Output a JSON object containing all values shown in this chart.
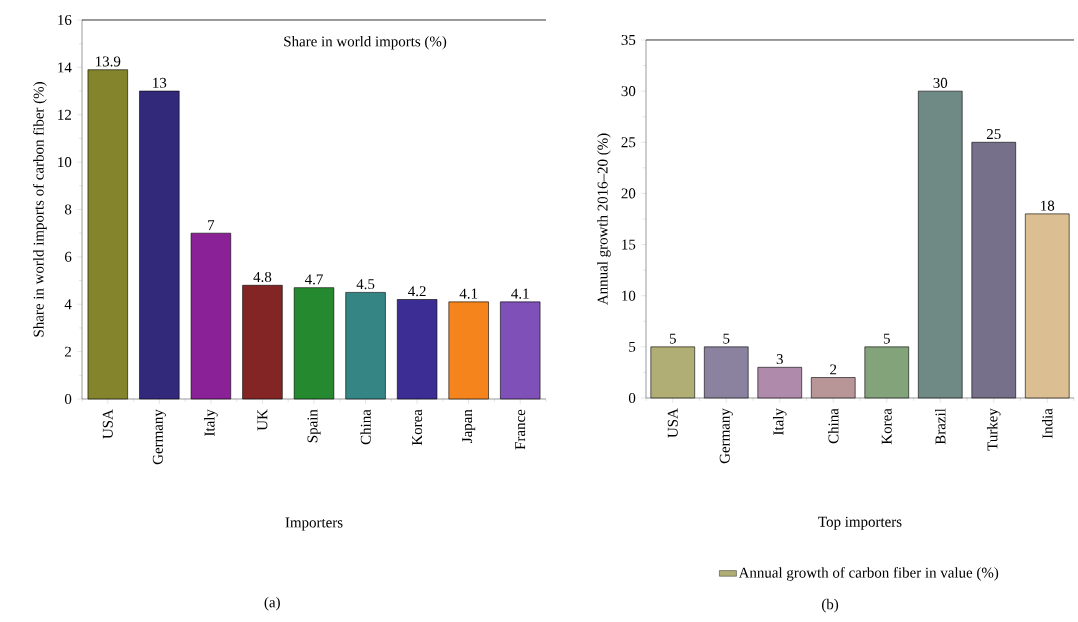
{
  "chart_data": [
    {
      "type": "bar",
      "xlabel": "Importers",
      "ylabel": "Share in world imports of carbon fiber (%)",
      "categories": [
        "USA",
        "Germany",
        "Italy",
        "UK",
        "Spain",
        "China",
        "Korea",
        "Japan",
        "France"
      ],
      "values": [
        13.9,
        13,
        7,
        4.8,
        4.7,
        4.5,
        4.2,
        4.1,
        4.1
      ],
      "colors": [
        "#84842c",
        "#33297a",
        "#8b2197",
        "#832525",
        "#258a2f",
        "#358585",
        "#3b2d94",
        "#f5841c",
        "#7e50b8"
      ],
      "ylim": [
        0,
        16
      ],
      "yticks": [
        0,
        2,
        4,
        6,
        8,
        10,
        12,
        14,
        16
      ],
      "data_labels": true,
      "grid": false,
      "legend": false,
      "annotations": [
        "Share in world imports (%)",
        "(a)"
      ]
    },
    {
      "type": "bar",
      "xlabel": "Top importers",
      "ylabel": "Annual growth 2016–20 (%)",
      "categories": [
        "USA",
        "Germany",
        "Italy",
        "China",
        "Korea",
        "Brazil",
        "Turkey",
        "India"
      ],
      "series": [
        {
          "name": "Annual growth of carbon fiber in value (%)",
          "color": "#b0ae75",
          "values": [
            5,
            5,
            3,
            2,
            5,
            30,
            25,
            18
          ],
          "colors": [
            "#b0ae75",
            "#8b829f",
            "#b08aab",
            "#b89697",
            "#83a37b",
            "#6f8985",
            "#76708a",
            "#dbbf92"
          ]
        }
      ],
      "ylim": [
        0,
        35
      ],
      "yticks": [
        0,
        5,
        10,
        15,
        20,
        25,
        30,
        35
      ],
      "data_labels": true,
      "grid": false,
      "legend": "bottom",
      "annotations": [
        "(b)"
      ]
    }
  ]
}
